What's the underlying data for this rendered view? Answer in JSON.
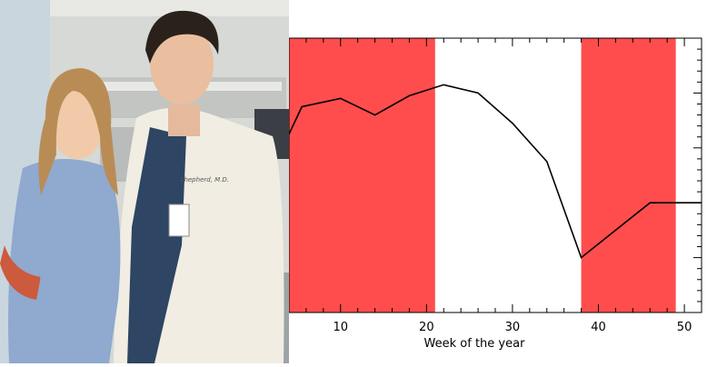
{
  "photo": {
    "subject": "two people in hospital scrubs and a white doctor's coat standing in a hospital room",
    "coat_embroidery": "Shepherd, M.D."
  },
  "colors": {
    "highlight": "#ff4d4d",
    "line": "#000000",
    "background": "#ffffff"
  },
  "chart_data": {
    "type": "line",
    "title": "",
    "xlabel": "Week of the year",
    "ylabel": "",
    "xlim": [
      4,
      52
    ],
    "ylim": [
      0,
      10
    ],
    "x_ticks": [
      10,
      20,
      30,
      40,
      50
    ],
    "y_tick_labels_shown": false,
    "grid": false,
    "legend": "none",
    "highlight_bands": [
      {
        "x_start": 4,
        "x_end": 21
      },
      {
        "x_start": 38,
        "x_end": 49
      }
    ],
    "series": [
      {
        "x": [
          4,
          5.5,
          10,
          14,
          18,
          22,
          26,
          30,
          34,
          38,
          42,
          46,
          50,
          52
        ],
        "y": [
          6.5,
          7.5,
          7.8,
          7.2,
          7.9,
          8.3,
          8.0,
          6.9,
          5.5,
          2.0,
          3.0,
          4.0,
          4.0,
          4.0
        ]
      }
    ]
  }
}
